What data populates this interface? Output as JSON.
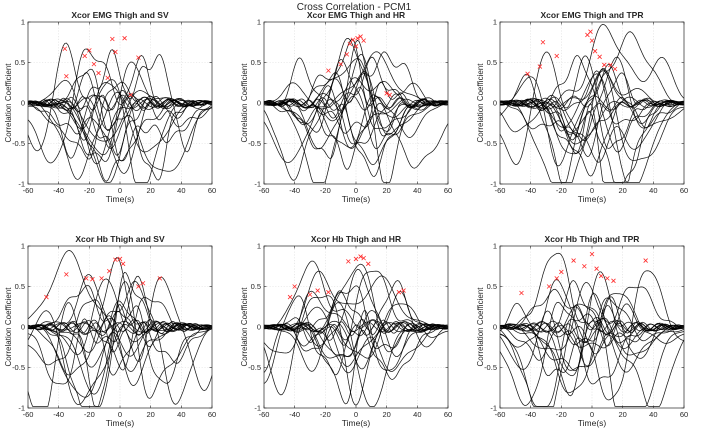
{
  "figure": {
    "title": "Cross Correlation - PCM1"
  },
  "chart_data": [
    {
      "type": "line",
      "title": "Xcor EMG Thigh and SV",
      "xlabel": "Time(s)",
      "ylabel": "Correlation Coefficient",
      "xlim": [
        -60,
        60
      ],
      "ylim": [
        -1,
        1
      ],
      "xticks": [
        -60,
        -40,
        -20,
        0,
        20,
        40,
        60
      ],
      "yticks": [
        -1,
        -0.5,
        0,
        0.5,
        1
      ],
      "grid": true,
      "series_count": 20,
      "peaks": [
        {
          "x": -36,
          "y": 0.67
        },
        {
          "x": -35,
          "y": 0.33
        },
        {
          "x": -23,
          "y": 0.58
        },
        {
          "x": -20,
          "y": 0.65
        },
        {
          "x": -17,
          "y": 0.48
        },
        {
          "x": -14,
          "y": 0.37
        },
        {
          "x": -8,
          "y": 0.31
        },
        {
          "x": -5,
          "y": 0.79
        },
        {
          "x": -3,
          "y": 0.63
        },
        {
          "x": 3,
          "y": 0.8
        },
        {
          "x": 7,
          "y": 0.1
        },
        {
          "x": 12,
          "y": 0.56
        }
      ]
    },
    {
      "type": "line",
      "title": "Xcor EMG Thigh and HR",
      "xlabel": "Time(s)",
      "ylabel": "Correlation Coefficient",
      "xlim": [
        -60,
        60
      ],
      "ylim": [
        -1,
        1
      ],
      "xticks": [
        -60,
        -40,
        -20,
        0,
        20,
        40,
        60
      ],
      "yticks": [
        -1,
        -0.5,
        0,
        0.5,
        1
      ],
      "grid": true,
      "series_count": 20,
      "peaks": [
        {
          "x": -18,
          "y": 0.4
        },
        {
          "x": -10,
          "y": 0.48
        },
        {
          "x": -6,
          "y": 0.6
        },
        {
          "x": -4,
          "y": 0.73
        },
        {
          "x": -2,
          "y": 0.78
        },
        {
          "x": 0,
          "y": 0.7
        },
        {
          "x": 1,
          "y": 0.8
        },
        {
          "x": 3,
          "y": 0.82
        },
        {
          "x": 5,
          "y": 0.77
        },
        {
          "x": 20,
          "y": 0.12
        },
        {
          "x": 22,
          "y": 0.1
        }
      ]
    },
    {
      "type": "line",
      "title": "Xcor EMG Thigh and TPR",
      "xlabel": "Time(s)",
      "ylabel": "Correlation Coefficient",
      "xlim": [
        -60,
        60
      ],
      "ylim": [
        -1,
        1
      ],
      "xticks": [
        -60,
        -40,
        -20,
        0,
        20,
        40,
        60
      ],
      "yticks": [
        -1,
        -0.5,
        0,
        0.5,
        1
      ],
      "grid": true,
      "series_count": 20,
      "peaks": [
        {
          "x": -42,
          "y": 0.36
        },
        {
          "x": -34,
          "y": 0.45
        },
        {
          "x": -32,
          "y": 0.75
        },
        {
          "x": -23,
          "y": 0.58
        },
        {
          "x": -3,
          "y": 0.84
        },
        {
          "x": -1,
          "y": 0.88
        },
        {
          "x": 0,
          "y": 0.77
        },
        {
          "x": 2,
          "y": 0.64
        },
        {
          "x": 5,
          "y": 0.57
        },
        {
          "x": 8,
          "y": 0.47
        },
        {
          "x": 12,
          "y": 0.47
        },
        {
          "x": 15,
          "y": 0.42
        }
      ]
    },
    {
      "type": "line",
      "title": "Xcor Hb Thigh and SV",
      "xlabel": "Time(s)",
      "ylabel": "Correlation Coefficient",
      "xlim": [
        -60,
        60
      ],
      "ylim": [
        -1,
        1
      ],
      "xticks": [
        -60,
        -40,
        -20,
        0,
        20,
        40,
        60
      ],
      "yticks": [
        -1,
        -0.5,
        0,
        0.5,
        1
      ],
      "grid": true,
      "series_count": 20,
      "peaks": [
        {
          "x": -48,
          "y": 0.37
        },
        {
          "x": -35,
          "y": 0.65
        },
        {
          "x": -22,
          "y": 0.6
        },
        {
          "x": -18,
          "y": 0.59
        },
        {
          "x": -12,
          "y": 0.6
        },
        {
          "x": -7,
          "y": 0.69
        },
        {
          "x": -3,
          "y": 0.83
        },
        {
          "x": 0,
          "y": 0.84
        },
        {
          "x": 2,
          "y": 0.78
        },
        {
          "x": 12,
          "y": 0.5
        },
        {
          "x": 15,
          "y": 0.54
        },
        {
          "x": 26,
          "y": 0.6
        }
      ]
    },
    {
      "type": "line",
      "title": "Xcor Hb Thigh and HR",
      "xlabel": "Time(s)",
      "ylabel": "Correlation Coefficient",
      "xlim": [
        -60,
        60
      ],
      "ylim": [
        -1,
        1
      ],
      "xticks": [
        -60,
        -40,
        -20,
        0,
        20,
        40,
        60
      ],
      "yticks": [
        -1,
        -0.5,
        0,
        0.5,
        1
      ],
      "grid": true,
      "series_count": 20,
      "peaks": [
        {
          "x": -43,
          "y": 0.37
        },
        {
          "x": -40,
          "y": 0.5
        },
        {
          "x": -30,
          "y": 0.4
        },
        {
          "x": -25,
          "y": 0.45
        },
        {
          "x": -18,
          "y": 0.43
        },
        {
          "x": -5,
          "y": 0.81
        },
        {
          "x": 0,
          "y": 0.84
        },
        {
          "x": 3,
          "y": 0.87
        },
        {
          "x": 5,
          "y": 0.85
        },
        {
          "x": 8,
          "y": 0.78
        },
        {
          "x": 28,
          "y": 0.43
        },
        {
          "x": 31,
          "y": 0.45
        }
      ]
    },
    {
      "type": "line",
      "title": "Xcor Hb Thigh and TPR",
      "xlabel": "Time(s)",
      "ylabel": "Correlation Coefficient",
      "xlim": [
        -60,
        60
      ],
      "ylim": [
        -1,
        1
      ],
      "xticks": [
        -60,
        -40,
        -20,
        0,
        20,
        40,
        60
      ],
      "yticks": [
        -1,
        -0.5,
        0,
        0.5,
        1
      ],
      "grid": true,
      "series_count": 20,
      "peaks": [
        {
          "x": -46,
          "y": 0.42
        },
        {
          "x": -28,
          "y": 0.5
        },
        {
          "x": -23,
          "y": 0.6
        },
        {
          "x": -20,
          "y": 0.68
        },
        {
          "x": -12,
          "y": 0.82
        },
        {
          "x": -5,
          "y": 0.75
        },
        {
          "x": 0,
          "y": 0.9
        },
        {
          "x": 3,
          "y": 0.72
        },
        {
          "x": 6,
          "y": 0.63
        },
        {
          "x": 10,
          "y": 0.6
        },
        {
          "x": 14,
          "y": 0.57
        },
        {
          "x": 35,
          "y": 0.82
        }
      ]
    }
  ]
}
